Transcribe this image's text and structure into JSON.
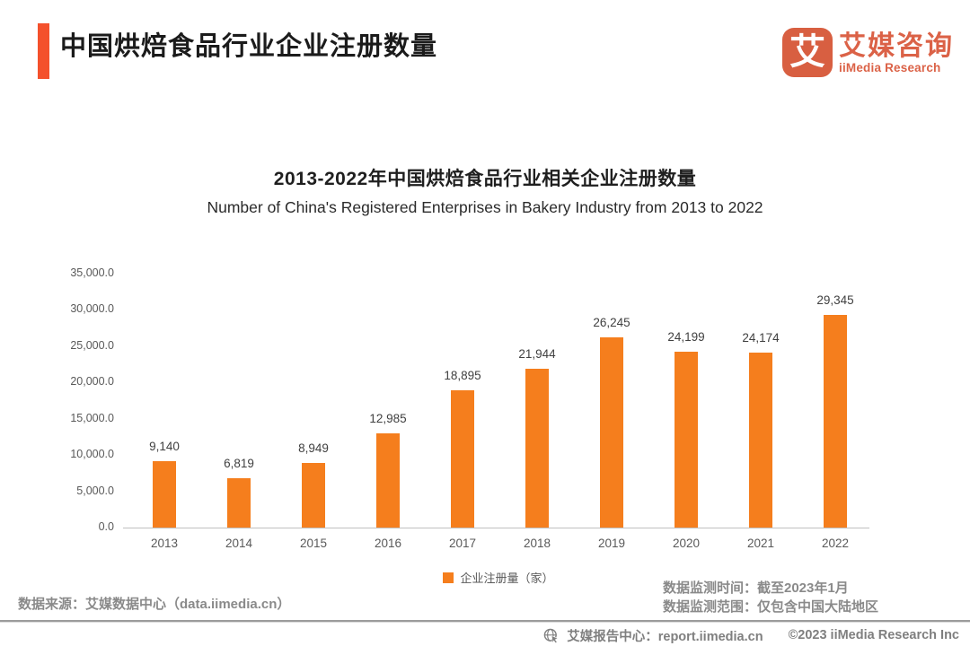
{
  "page": {
    "title": "中国烘焙食品行业企业注册数量"
  },
  "logo": {
    "glyph": "艾",
    "name_cn": "艾媒咨询",
    "name_en": "iiMedia Research"
  },
  "chart_data": {
    "type": "bar",
    "title": "2013-2022年中国烘焙食品行业相关企业注册数量",
    "subtitle": "Number of China's Registered Enterprises in Bakery Industry from 2013 to 2022",
    "categories": [
      "2013",
      "2014",
      "2015",
      "2016",
      "2017",
      "2018",
      "2019",
      "2020",
      "2021",
      "2022"
    ],
    "values": [
      9140,
      6819,
      8949,
      12985,
      18895,
      21944,
      26245,
      24199,
      24174,
      29345
    ],
    "value_labels": [
      "9,140",
      "6,819",
      "8,949",
      "12,985",
      "18,895",
      "21,944",
      "26,245",
      "24,199",
      "24,174",
      "29,345"
    ],
    "legend": "企业注册量（家）",
    "xlabel": "",
    "ylabel": "",
    "ylim": [
      0,
      35000
    ],
    "ytick_step": 5000,
    "ytick_labels": [
      "0.0",
      "5,000.0",
      "10,000.0",
      "15,000.0",
      "20,000.0",
      "25,000.0",
      "30,000.0",
      "35,000.0"
    ],
    "grid": false,
    "legend_position": "bottom",
    "bar_color": "#F57E1D"
  },
  "notes": {
    "source": "数据来源：艾媒数据中心（data.iimedia.cn）",
    "monitor_time": "数据监测时间：截至2023年1月",
    "monitor_scope": "数据监测范围：仅包含中国大陆地区"
  },
  "footer": {
    "report_center": "艾媒报告中心：report.iimedia.cn",
    "copyright": "©2023 iiMedia Research  Inc"
  },
  "colors": {
    "accent": "#F4512C",
    "bar": "#F57E1D",
    "logo": "#DB6247",
    "note_gray": "#8A8A8A"
  }
}
